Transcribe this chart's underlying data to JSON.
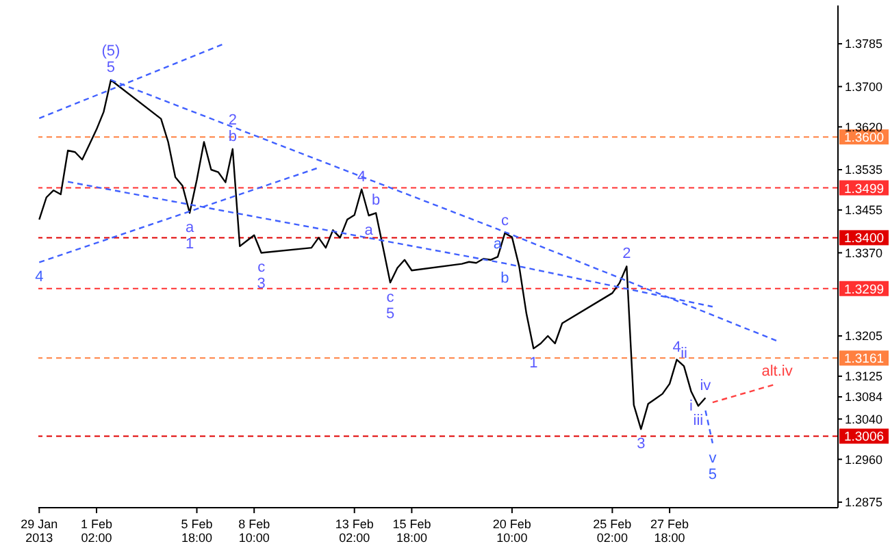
{
  "chart_data": {
    "type": "line",
    "xlim": [
      "2013-01-29T09:00",
      "2013-03-07T14:00"
    ],
    "xticks": [
      {
        "value": "2013-01-29T10:00",
        "label": "29 Jan 2013"
      },
      {
        "value": "2013-02-01T02:00",
        "label": "1 Feb 02:00"
      },
      {
        "value": "2013-02-05T18:00",
        "label": "5 Feb 18:00"
      },
      {
        "value": "2013-02-08T10:00",
        "label": "8 Feb 10:00"
      },
      {
        "value": "2013-02-13T02:00",
        "label": "13 Feb 02:00"
      },
      {
        "value": "2013-02-15T18:00",
        "label": "15 Feb 18:00"
      },
      {
        "value": "2013-02-20T10:00",
        "label": "20 Feb 10:00"
      },
      {
        "value": "2013-02-25T02:00",
        "label": "25 Feb 02:00"
      },
      {
        "value": "2013-02-27T18:00",
        "label": "27 Feb 18:00"
      }
    ],
    "ylim": [
      1.2864,
      1.3861
    ],
    "yticks": [
      {
        "value": 1.2875,
        "label": "1.2875"
      },
      {
        "value": 1.296,
        "label": "1.2960"
      },
      {
        "value": 1.304,
        "label": "1.3040"
      },
      {
        "value": 1.3084,
        "label": "1.3084"
      },
      {
        "value": 1.3125,
        "label": "1.3125"
      },
      {
        "value": 1.3205,
        "label": "1.3205"
      },
      {
        "value": 1.337,
        "label": "1.3370"
      },
      {
        "value": 1.3455,
        "label": "1.3455"
      },
      {
        "value": 1.3535,
        "label": "1.3535"
      },
      {
        "value": 1.362,
        "label": "1.3620"
      },
      {
        "value": 1.37,
        "label": "1.3700"
      },
      {
        "value": 1.3785,
        "label": "1.3785"
      }
    ],
    "grid": false,
    "legend": false,
    "marker": "none",
    "series": [
      {
        "color": "#000000",
        "line_style": "solid",
        "x": [
          "2013-01-29T10:00",
          "2013-01-29T18:00",
          "2013-01-30T02:00",
          "2013-01-30T10:00",
          "2013-01-30T18:00",
          "2013-01-31T02:00",
          "2013-01-31T10:00",
          "2013-01-31T18:00",
          "2013-02-01T02:00",
          "2013-02-01T10:00",
          "2013-02-01T18:00",
          "2013-02-04T02:00",
          "2013-02-04T10:00",
          "2013-02-04T18:00",
          "2013-02-05T02:00",
          "2013-02-05T10:00",
          "2013-02-05T18:00",
          "2013-02-06T02:00",
          "2013-02-06T10:00",
          "2013-02-06T18:00",
          "2013-02-07T02:00",
          "2013-02-07T10:00",
          "2013-02-07T18:00",
          "2013-02-08T02:00",
          "2013-02-08T10:00",
          "2013-02-08T18:00",
          "2013-02-11T02:00",
          "2013-02-11T10:00",
          "2013-02-11T18:00",
          "2013-02-12T02:00",
          "2013-02-12T10:00",
          "2013-02-12T18:00",
          "2013-02-13T02:00",
          "2013-02-13T10:00",
          "2013-02-13T18:00",
          "2013-02-14T02:00",
          "2013-02-14T10:00",
          "2013-02-14T18:00",
          "2013-02-15T02:00",
          "2013-02-15T10:00",
          "2013-02-15T18:00",
          "2013-02-18T02:00",
          "2013-02-18T10:00",
          "2013-02-18T18:00",
          "2013-02-19T02:00",
          "2013-02-19T10:00",
          "2013-02-19T18:00",
          "2013-02-20T02:00",
          "2013-02-20T10:00",
          "2013-02-20T18:00",
          "2013-02-21T02:00",
          "2013-02-21T10:00",
          "2013-02-21T18:00",
          "2013-02-22T02:00",
          "2013-02-22T10:00",
          "2013-02-22T18:00",
          "2013-02-25T02:00",
          "2013-02-25T10:00",
          "2013-02-25T18:00",
          "2013-02-26T02:00",
          "2013-02-26T10:00",
          "2013-02-26T18:00",
          "2013-02-27T02:00",
          "2013-02-27T10:00",
          "2013-02-27T18:00",
          "2013-02-28T02:00",
          "2013-02-28T10:00",
          "2013-02-28T18:00",
          "2013-03-01T02:00",
          "2013-03-01T10:00"
        ],
        "values": [
          1.3436,
          1.348,
          1.3494,
          1.3486,
          1.3573,
          1.357,
          1.3555,
          1.3585,
          1.3615,
          1.365,
          1.3713,
          1.3636,
          1.359,
          1.352,
          1.3503,
          1.3449,
          1.3515,
          1.359,
          1.3535,
          1.353,
          1.351,
          1.3576,
          1.3383,
          1.3394,
          1.3405,
          1.337,
          1.338,
          1.34,
          1.338,
          1.3415,
          1.34,
          1.3436,
          1.3445,
          1.3496,
          1.3444,
          1.3449,
          1.338,
          1.3311,
          1.334,
          1.3356,
          1.3335,
          1.3348,
          1.3352,
          1.335,
          1.3358,
          1.3356,
          1.3362,
          1.3409,
          1.3401,
          1.3343,
          1.325,
          1.318,
          1.319,
          1.3205,
          1.319,
          1.323,
          1.329,
          1.331,
          1.3343,
          1.3068,
          1.302,
          1.307,
          1.308,
          1.309,
          1.311,
          1.3158,
          1.3145,
          1.3095,
          1.3066,
          1.3082
        ]
      },
      {
        "color": "#4060ff",
        "line_style": "dashed",
        "x": [
          "2013-01-29T10:00",
          "2013-02-07T02:00"
        ],
        "values": [
          1.3637,
          1.3786
        ]
      },
      {
        "color": "#4060ff",
        "line_style": "dashed",
        "x": [
          "2013-01-29T10:00",
          "2013-02-11T10:00"
        ],
        "values": [
          1.3351,
          1.3539
        ]
      },
      {
        "color": "#4060ff",
        "line_style": "dashed",
        "x": [
          "2013-02-01T18:00",
          "2013-02-19T18:00",
          "2013-03-04T18:00"
        ],
        "values": [
          1.3713,
          1.3417,
          1.3195
        ]
      },
      {
        "color": "#4060ff",
        "line_style": "dashed",
        "x": [
          "2013-01-30T18:00",
          "2013-02-20T02:00",
          "2013-03-01T18:00"
        ],
        "values": [
          1.3511,
          1.3349,
          1.3263
        ]
      },
      {
        "color": "#4060ff",
        "line_style": "dashed",
        "x": [
          "2013-03-01T10:00",
          "2013-03-01T18:00"
        ],
        "values": [
          1.3057,
          1.2992
        ]
      },
      {
        "color": "#ff4040",
        "line_style": "dashed",
        "x": [
          "2013-03-01T18:00",
          "2013-03-04T18:00"
        ],
        "values": [
          1.3073,
          1.311
        ]
      }
    ],
    "ref_lines": [
      {
        "axis": "y",
        "value": 1.36,
        "label": "1.3600",
        "color": "#ff8040",
        "line_style": "dashed"
      },
      {
        "axis": "y",
        "value": 1.3499,
        "label": "1.3499",
        "color": "#ff3030",
        "line_style": "dashed"
      },
      {
        "axis": "y",
        "value": 1.34,
        "label": "1.3400",
        "color": "#e00000",
        "line_style": "dashed"
      },
      {
        "axis": "y",
        "value": 1.3299,
        "label": "1.3299",
        "color": "#ff3030",
        "line_style": "dashed"
      },
      {
        "axis": "y",
        "value": 1.3161,
        "label": "1.3161",
        "color": "#ff8040",
        "line_style": "dashed"
      },
      {
        "axis": "y",
        "value": 1.3006,
        "label": "1.3006",
        "color": "#e00000",
        "line_style": "dashed"
      }
    ],
    "annotations": [
      {
        "text": "4",
        "x": "2013-01-29T10:00",
        "y": 1.3351
      },
      {
        "text": "5",
        "x": "2013-02-01T18:00",
        "y": 1.3713
      },
      {
        "text": "(5)",
        "x": "2013-02-01T18:00",
        "y": 1.3713
      },
      {
        "text": "a",
        "x": "2013-02-05T10:00",
        "y": 1.3449
      },
      {
        "text": "1",
        "x": "2013-02-05T10:00",
        "y": 1.3449
      },
      {
        "text": "b",
        "x": "2013-02-07T10:00",
        "y": 1.3576
      },
      {
        "text": "2",
        "x": "2013-02-07T10:00",
        "y": 1.3576
      },
      {
        "text": "c",
        "x": "2013-02-08T18:00",
        "y": 1.337
      },
      {
        "text": "3",
        "x": "2013-02-08T18:00",
        "y": 1.337
      },
      {
        "text": "4",
        "x": "2013-02-13T10:00",
        "y": 1.3496
      },
      {
        "text": "a",
        "x": "2013-02-13T18:00",
        "y": 1.3444
      },
      {
        "text": "b",
        "x": "2013-02-14T02:00",
        "y": 1.3449
      },
      {
        "text": "c",
        "x": "2013-02-14T18:00",
        "y": 1.3311
      },
      {
        "text": "5",
        "x": "2013-02-14T18:00",
        "y": 1.3311
      },
      {
        "text": "a",
        "x": "2013-02-19T18:00",
        "y": 1.3417
      },
      {
        "text": "b",
        "x": "2013-02-20T02:00",
        "y": 1.3349
      },
      {
        "text": "c",
        "x": "2013-02-20T02:00",
        "y": 1.3409
      },
      {
        "text": "1",
        "x": "2013-02-21T10:00",
        "y": 1.318
      },
      {
        "text": "2",
        "x": "2013-02-25T18:00",
        "y": 1.3343
      },
      {
        "text": "3",
        "x": "2013-02-26T10:00",
        "y": 1.302
      },
      {
        "text": "4",
        "x": "2013-02-28T02:00",
        "y": 1.3158
      },
      {
        "text": "ii",
        "x": "2013-02-28T10:00",
        "y": 1.3145
      },
      {
        "text": "i",
        "x": "2013-02-28T18:00",
        "y": 1.3095
      },
      {
        "text": "iii",
        "x": "2013-03-01T02:00",
        "y": 1.3066
      },
      {
        "text": "iv",
        "x": "2013-03-01T10:00",
        "y": 1.3082
      },
      {
        "text": "v",
        "x": "2013-03-01T18:00",
        "y": 1.2992
      },
      {
        "text": "5",
        "x": "2013-03-01T18:00",
        "y": 1.2992
      },
      {
        "text": "alt.iv",
        "x": "2013-03-04T18:00",
        "y": 1.311
      }
    ]
  }
}
